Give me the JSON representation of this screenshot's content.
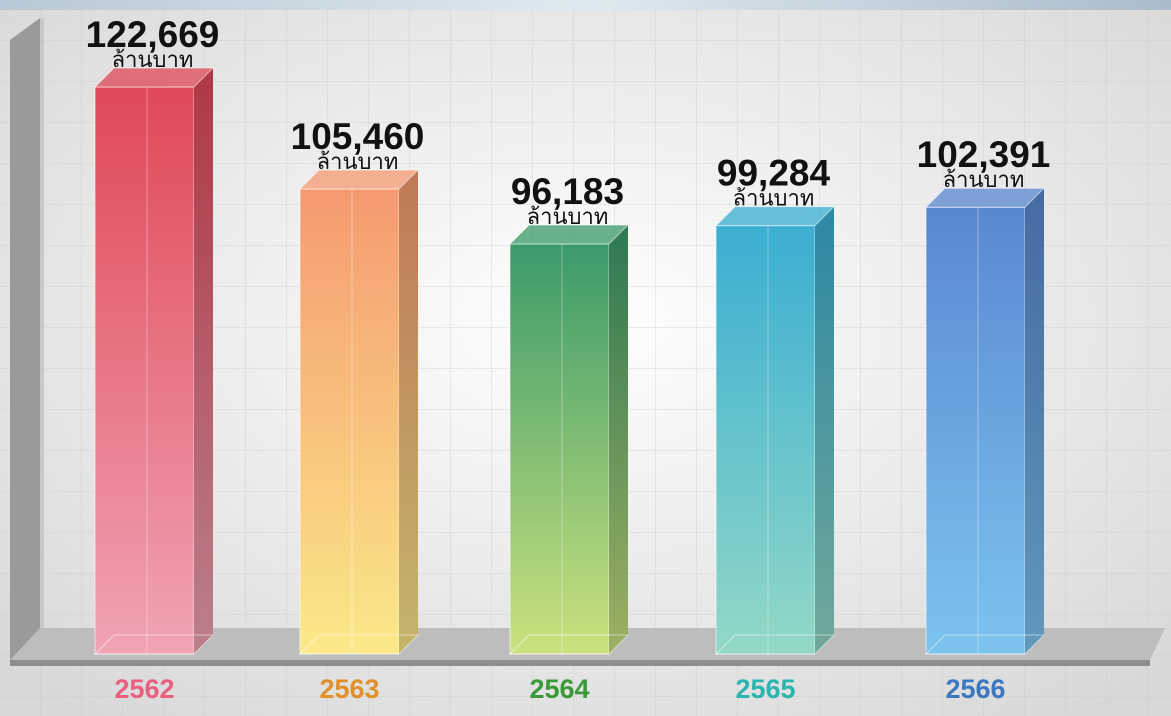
{
  "chart_data": {
    "type": "bar3d",
    "categories": [
      "2562",
      "2563",
      "2564",
      "2565",
      "2566"
    ],
    "values": [
      122669,
      105460,
      96183,
      99284,
      102391
    ],
    "value_labels": [
      "122,669",
      "105,460",
      "96,183",
      "99,284",
      "102,391"
    ],
    "unit": "ล้านบาท",
    "colors": [
      [
        "#e04858",
        "#f0a4b4"
      ],
      [
        "#f59a70",
        "#fbe98a"
      ],
      [
        "#3a9a6a",
        "#cbe27e"
      ],
      [
        "#3aaed2",
        "#92d8c6"
      ],
      [
        "#5a88d0",
        "#7cc4f0"
      ]
    ],
    "label_colors": [
      "#ea5f80",
      "#e0902a",
      "#3a9a3a",
      "#2ab5b0",
      "#3a78c0"
    ]
  }
}
